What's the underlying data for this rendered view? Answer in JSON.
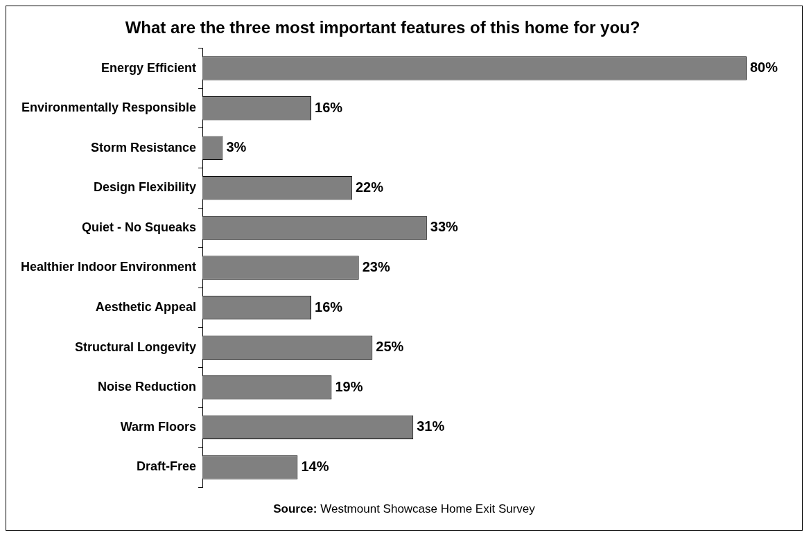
{
  "chart_data": {
    "type": "bar",
    "orientation": "horizontal",
    "title": "What are the three most important features of this home for you?",
    "categories": [
      "Energy Efficient",
      "Environmentally Responsible",
      "Storm Resistance",
      "Design Flexibility",
      "Quiet - No Squeaks",
      "Healthier Indoor Environment",
      "Aesthetic Appeal",
      "Structural Longevity",
      "Noise Reduction",
      "Warm Floors",
      "Draft-Free"
    ],
    "values": [
      80,
      16,
      3,
      22,
      33,
      23,
      16,
      25,
      19,
      31,
      14
    ],
    "value_labels": [
      "80%",
      "16%",
      "3%",
      "22%",
      "33%",
      "23%",
      "16%",
      "25%",
      "19%",
      "31%",
      "14%"
    ],
    "color": "#808080",
    "annotations": [
      "Source: Westmount Showcase Home Exit Survey"
    ]
  }
}
